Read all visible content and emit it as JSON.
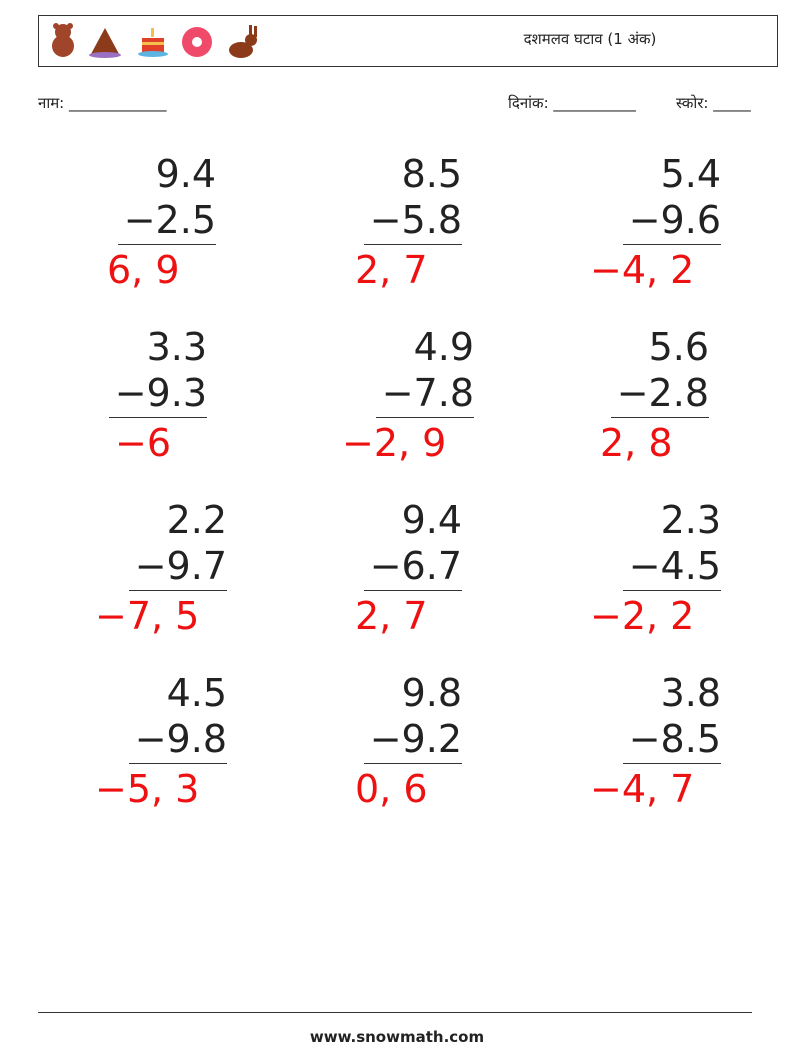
{
  "header": {
    "title": "दशमलव घटाव (1 अंक)"
  },
  "fields": {
    "name": "नाम: _____________",
    "date": "दिनांक: ___________",
    "score": "स्कोर: _____"
  },
  "problems": [
    {
      "top": "9.4",
      "bottom": "−2.5",
      "answer": "6, 9"
    },
    {
      "top": "8.5",
      "bottom": "−5.8",
      "answer": "2, 7"
    },
    {
      "top": "5.4",
      "bottom": "−9.6",
      "answer": "−4, 2"
    },
    {
      "top": "3.3",
      "bottom": "−9.3",
      "answer": "−6"
    },
    {
      "top": "4.9",
      "bottom": "−7.8",
      "answer": "−2, 9"
    },
    {
      "top": "5.6",
      "bottom": "−2.8",
      "answer": "2, 8"
    },
    {
      "top": "2.2",
      "bottom": "−9.7",
      "answer": "−7, 5"
    },
    {
      "top": "9.4",
      "bottom": "−6.7",
      "answer": "2, 7"
    },
    {
      "top": "2.3",
      "bottom": "−4.5",
      "answer": "−2, 2"
    },
    {
      "top": "4.5",
      "bottom": "−9.8",
      "answer": "−5, 3"
    },
    {
      "top": "9.8",
      "bottom": "−9.2",
      "answer": "0, 6"
    },
    {
      "top": "3.8",
      "bottom": "−8.5",
      "answer": "−4, 7"
    }
  ],
  "footer": {
    "site": "www.snowmath.com"
  }
}
